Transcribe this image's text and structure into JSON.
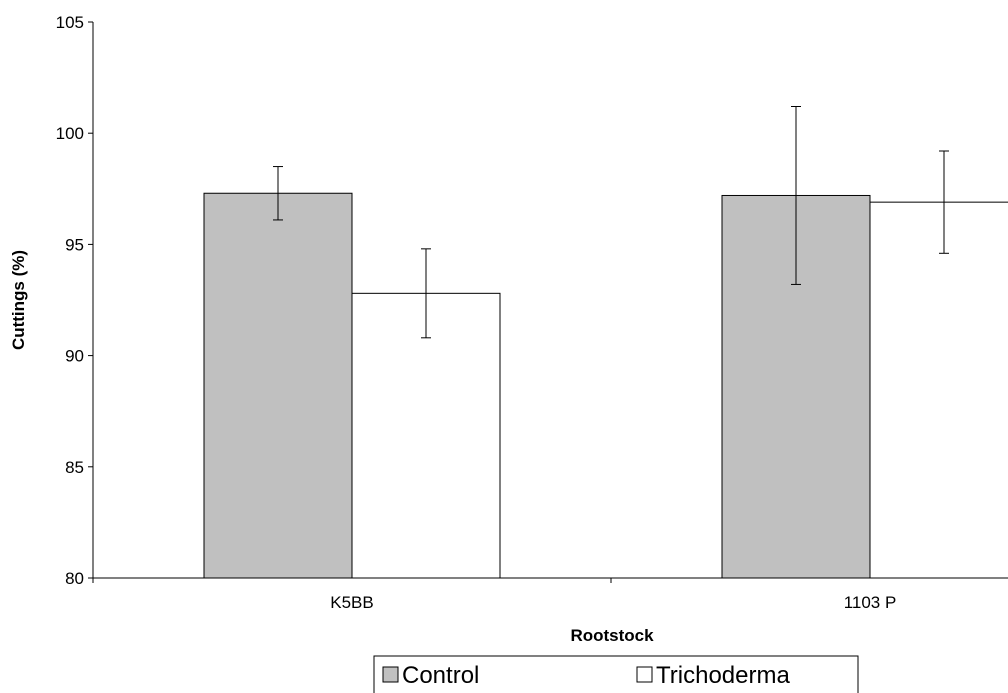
{
  "chart_data": {
    "type": "bar",
    "categories": [
      "K5BB",
      "1103 P"
    ],
    "series": [
      {
        "name": "Control",
        "values": [
          97.3,
          97.2
        ],
        "errors": [
          1.2,
          4.0
        ],
        "color": "#c0c0c0"
      },
      {
        "name": "Trichoderma",
        "values": [
          92.8,
          96.9
        ],
        "errors": [
          2.0,
          2.3
        ],
        "color": "#ffffff"
      }
    ],
    "xlabel": "Rootstock",
    "ylabel": "Cuttings (%)",
    "ylim": [
      80,
      105
    ],
    "yticks": [
      80,
      85,
      90,
      95,
      100,
      105
    ],
    "grid": false,
    "legend_position": "bottom"
  }
}
